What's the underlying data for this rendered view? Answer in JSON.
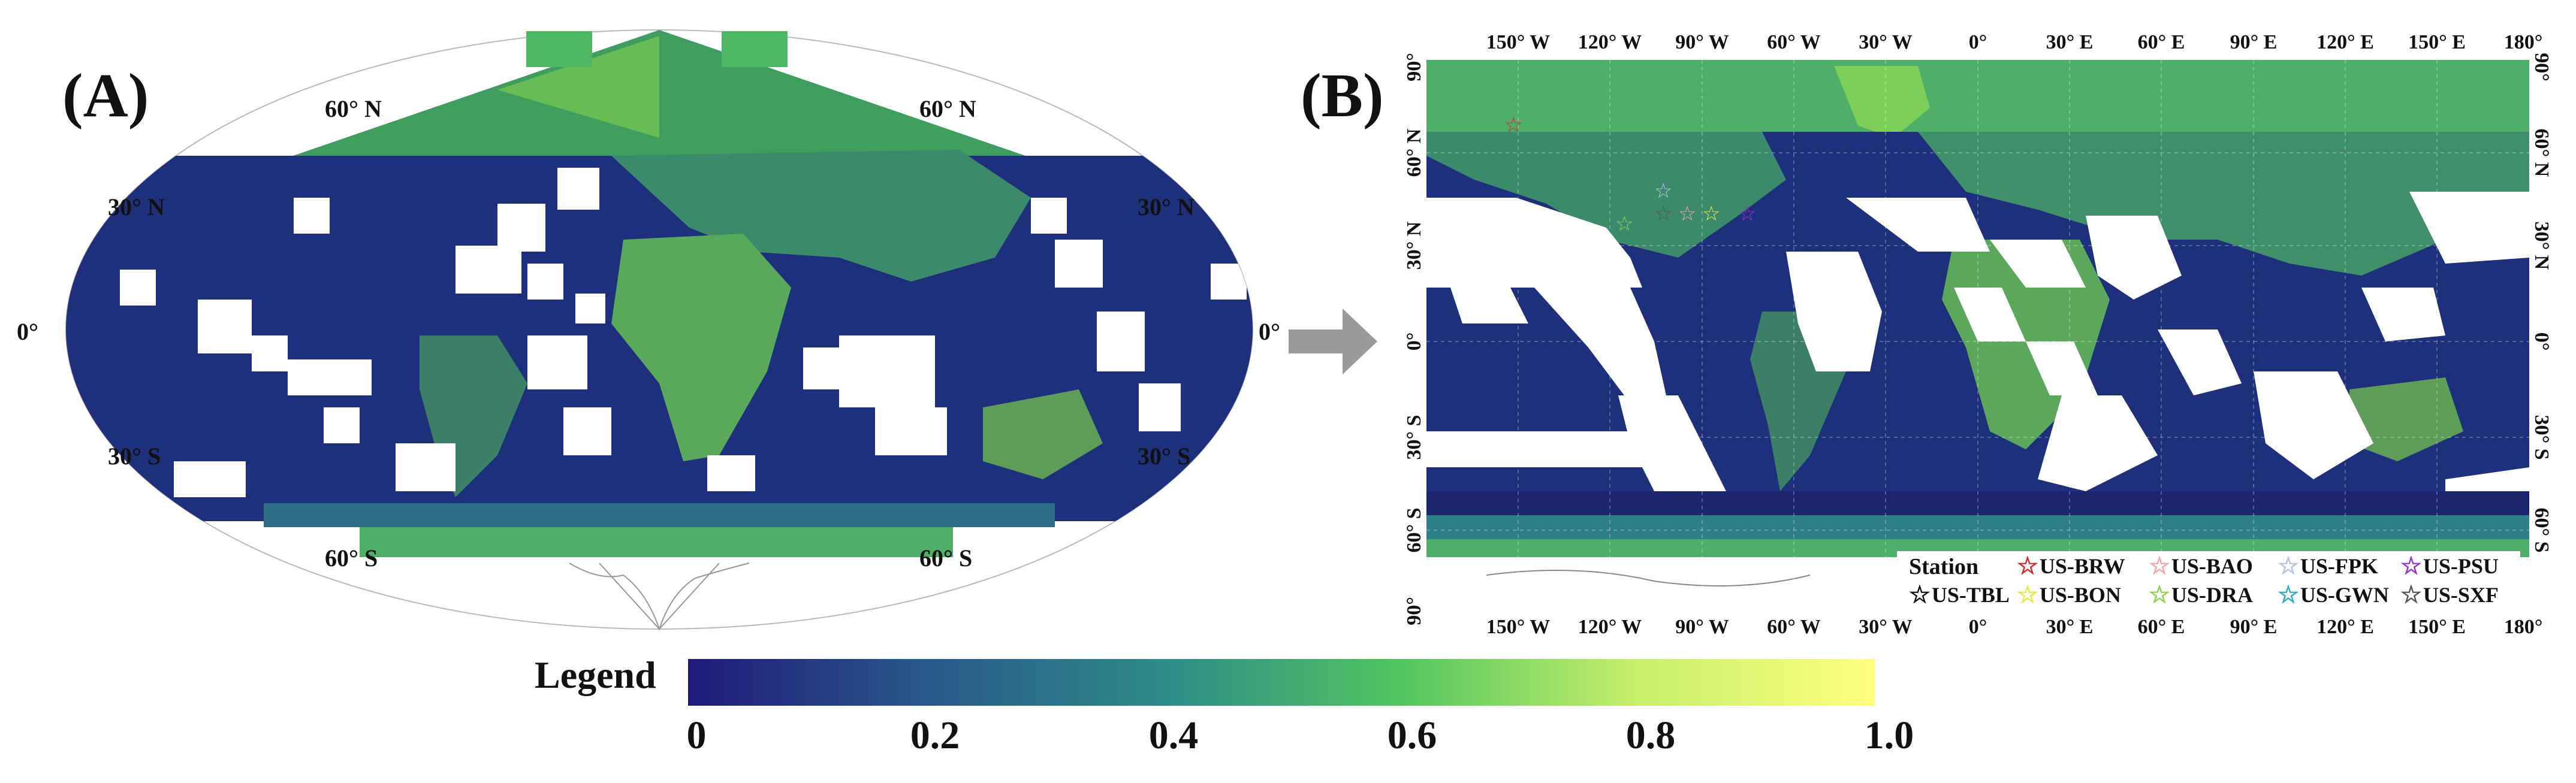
{
  "panels": {
    "a": {
      "label": "(A)"
    },
    "b": {
      "label": "(B)"
    }
  },
  "panel_a": {
    "lat_labels": {
      "n60_left": "60° N",
      "n60_right": "60° N",
      "n30_left": "30° N",
      "n30_right": "30° N",
      "eq_left": "0°",
      "eq_right": "0°",
      "s30_left": "30° S",
      "s30_right": "30° S",
      "s60_left": "60° S",
      "s60_right": "60° S"
    }
  },
  "panel_b": {
    "lon_labels": [
      "150° W",
      "120° W",
      "90° W",
      "60° W",
      "30° W",
      "0°",
      "30° E",
      "60° E",
      "90° E",
      "120° E",
      "150° E",
      "180°"
    ],
    "lat_labels_left": [
      "90°",
      "60° N",
      "30° N",
      "0°",
      "30° S",
      "60° S",
      "90°"
    ],
    "lat_labels_right": [
      "90°",
      "60° N",
      "30° N",
      "0°",
      "30° S",
      "60° S"
    ],
    "station_legend": {
      "title": "Station",
      "stations": [
        {
          "name": "US-BRW",
          "color": "#d62728"
        },
        {
          "name": "US-BAO",
          "color": "#f4a3a8"
        },
        {
          "name": "US-FPK",
          "color": "#b7c3e8"
        },
        {
          "name": "US-PSU",
          "color": "#9b30d6"
        },
        {
          "name": "US-TBL",
          "color": "#111111"
        },
        {
          "name": "US-BON",
          "color": "#e8e84a"
        },
        {
          "name": "US-DRA",
          "color": "#8fd14f"
        },
        {
          "name": "US-GWN",
          "color": "#2ea7c9"
        },
        {
          "name": "US-SXF",
          "color": "#555555"
        }
      ]
    }
  },
  "colorbar": {
    "title": "Legend",
    "ticks": [
      "0",
      "0.2",
      "0.4",
      "0.6",
      "0.8",
      "1.0"
    ],
    "range": [
      0,
      1.0
    ],
    "colors": [
      "#1f1a7a",
      "#29588a",
      "#2e8a88",
      "#52c560",
      "#7be23c",
      "#ffff7f"
    ]
  }
}
